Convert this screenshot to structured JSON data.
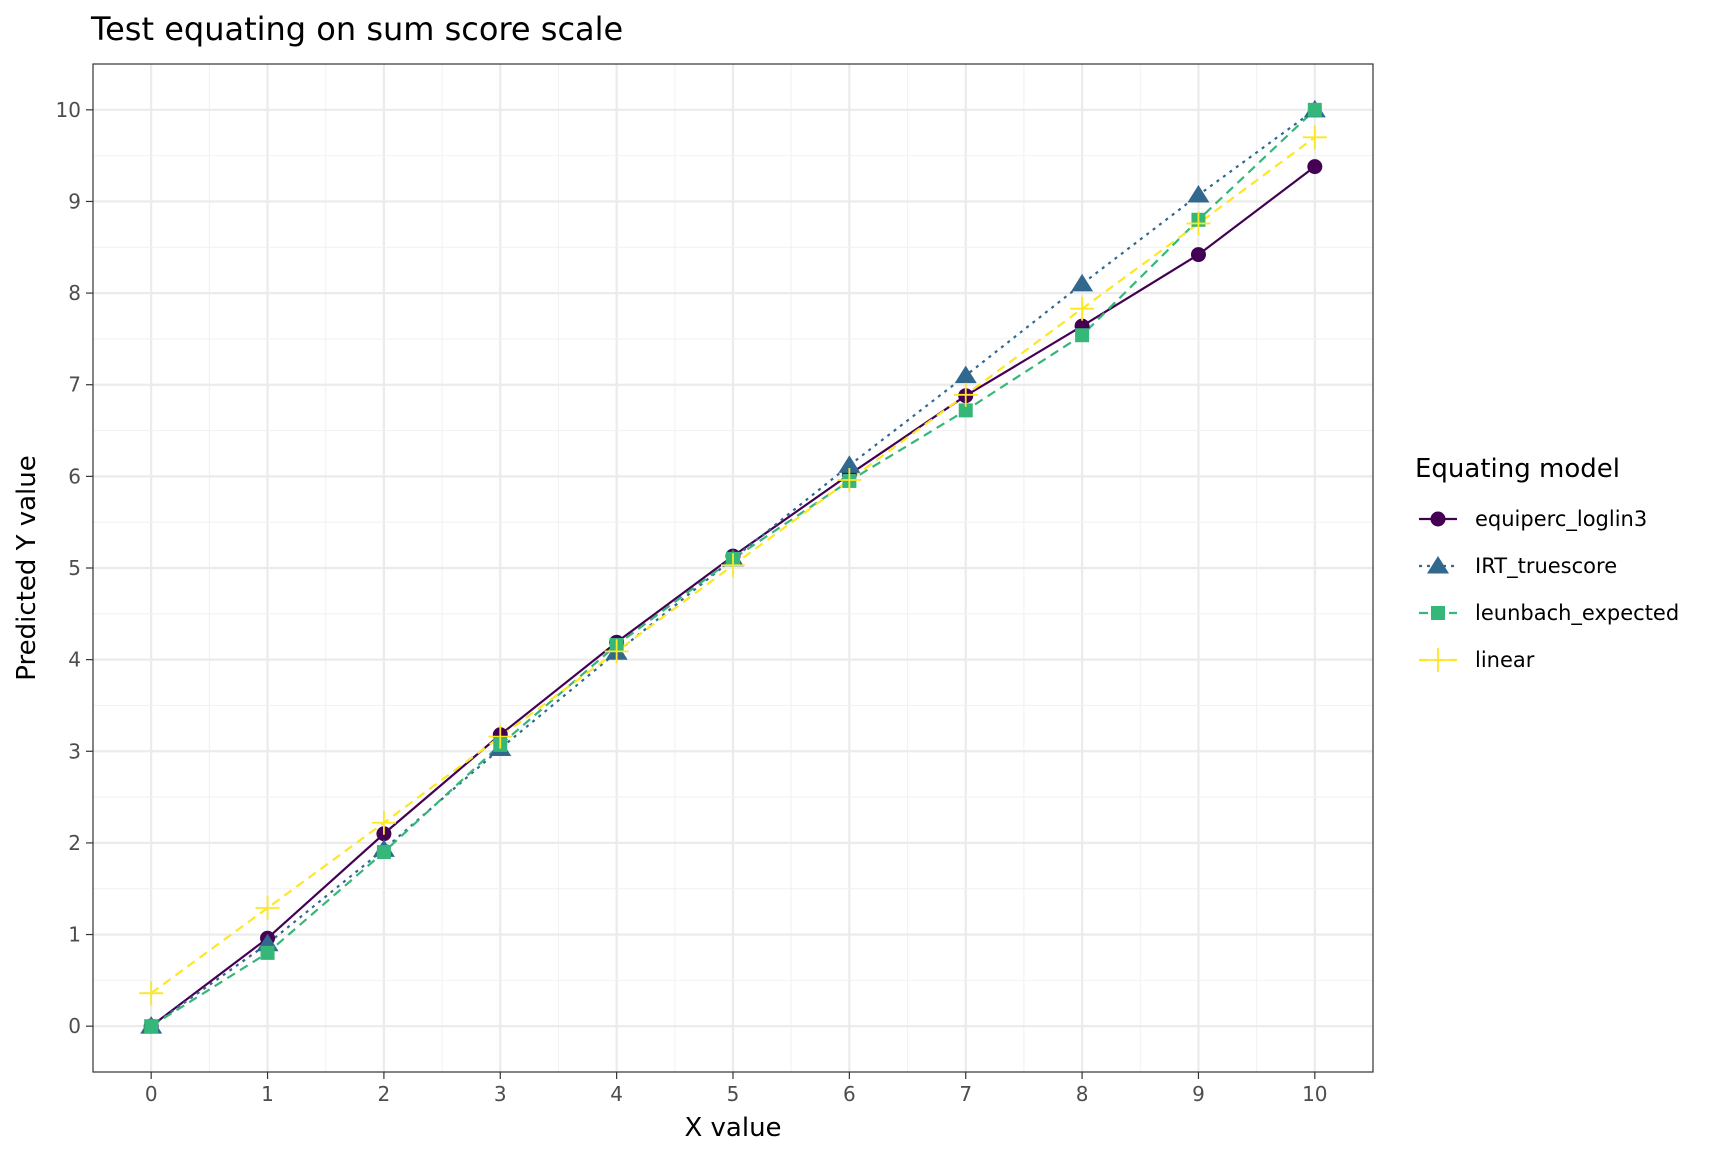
{
  "chart_data": {
    "type": "line",
    "title": "Test equating on sum score scale",
    "xlabel": "X value",
    "ylabel": "Predicted Y value",
    "x": [
      0,
      1,
      2,
      3,
      4,
      5,
      6,
      7,
      8,
      9,
      10
    ],
    "xlim": [
      -0.5,
      10.5
    ],
    "ylim": [
      -0.5,
      10.5
    ],
    "xticks": [
      0,
      1,
      2,
      3,
      4,
      5,
      6,
      7,
      8,
      9,
      10
    ],
    "yticks": [
      0,
      1,
      2,
      3,
      4,
      5,
      6,
      7,
      8,
      9,
      10
    ],
    "grid": true,
    "legend_title": "Equating model",
    "legend_position": "right",
    "series": [
      {
        "name": "equiperc_loglin3",
        "color": "#440154",
        "dash": "solid",
        "marker": "circle",
        "values": [
          0.0,
          0.96,
          2.1,
          3.18,
          4.19,
          5.13,
          6.02,
          6.88,
          7.64,
          8.42,
          9.38
        ]
      },
      {
        "name": "IRT_truescore",
        "color": "#31688E",
        "dash": "dotted",
        "marker": "triangle",
        "values": [
          0.0,
          0.9,
          1.93,
          3.03,
          4.08,
          5.1,
          6.12,
          7.1,
          8.1,
          9.07,
          10.0
        ]
      },
      {
        "name": "leunbach_expected",
        "color": "#35B779",
        "dash": "dashed",
        "marker": "square",
        "values": [
          0.0,
          0.8,
          1.9,
          3.07,
          4.16,
          5.1,
          5.95,
          6.72,
          7.54,
          8.8,
          10.0
        ]
      },
      {
        "name": "linear",
        "color": "#FDE725",
        "dash": "dashed",
        "marker": "plus",
        "values": [
          0.36,
          1.29,
          2.22,
          3.16,
          4.09,
          5.03,
          5.96,
          6.89,
          7.83,
          8.76,
          9.7
        ]
      }
    ]
  }
}
